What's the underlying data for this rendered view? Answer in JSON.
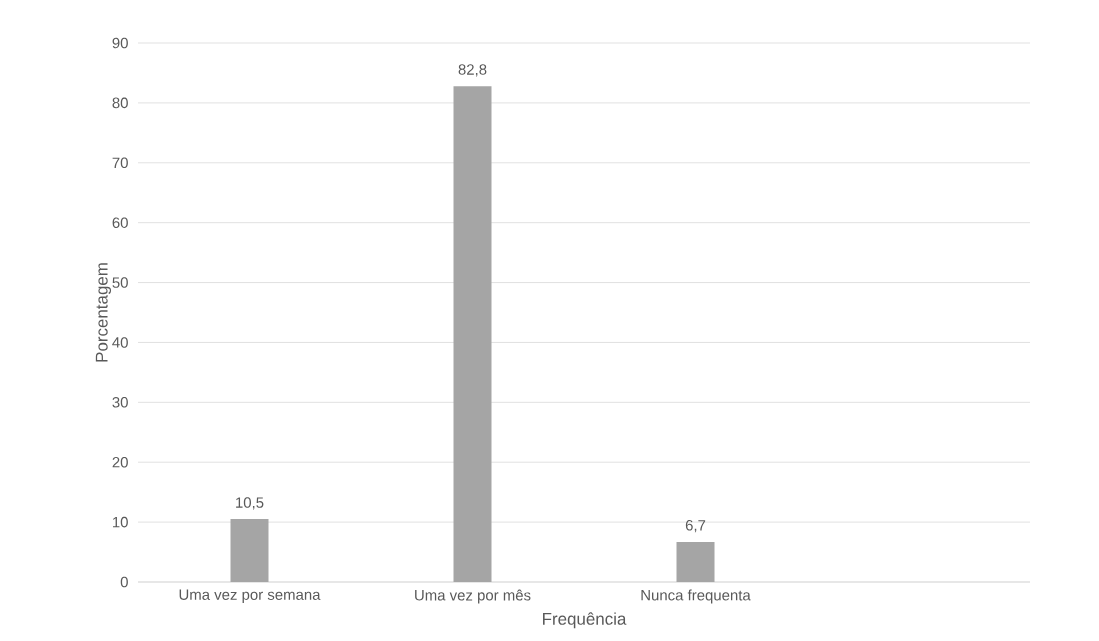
{
  "chart_data": {
    "type": "bar",
    "xlabel": "Frequência",
    "ylabel": "Porcentagem",
    "categories": [
      "Uma vez por semana",
      "Uma vez por mês",
      "Nunca frequenta",
      null
    ],
    "values": [
      10.5,
      82.8,
      6.7,
      null
    ],
    "value_labels": [
      "10,5",
      "82,8",
      "6,7",
      null
    ],
    "color": "#a5a5a5",
    "ylim": [
      0,
      90
    ],
    "yticks": [
      0,
      10,
      20,
      30,
      40,
      50,
      60,
      70,
      80,
      90
    ],
    "grid": "y"
  }
}
